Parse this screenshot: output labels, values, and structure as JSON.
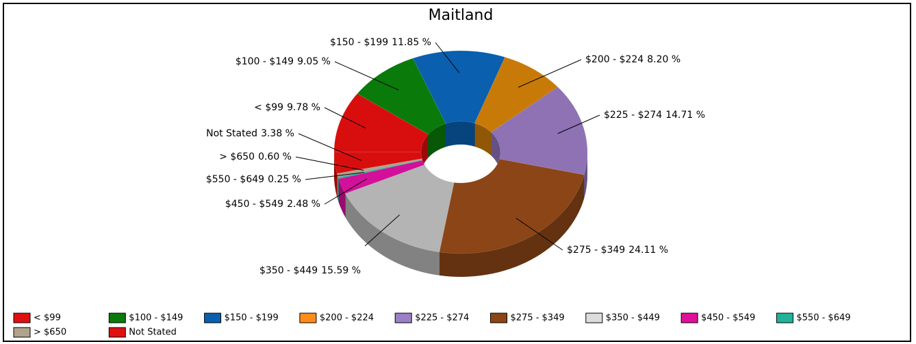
{
  "chart_data": {
    "type": "donut",
    "title": "Maitland",
    "categories": [
      "< $99",
      "$100 - $149",
      "$150 - $199",
      "$200 - $224",
      "$225 - $274",
      "$275 - $349",
      "$350 - $449",
      "$450 - $549",
      "$550 - $649",
      "> $650",
      "Not Stated"
    ],
    "values": [
      9.78,
      9.05,
      11.85,
      8.2,
      14.71,
      24.11,
      15.59,
      2.48,
      0.25,
      0.6,
      3.38
    ],
    "value_labels": [
      "9.78 %",
      "9.05 %",
      "11.85 %",
      "8.20 %",
      "14.71 %",
      "24.11 %",
      "15.59 %",
      "2.48 %",
      "0.25 %",
      "0.60 %",
      "3.38 %"
    ],
    "colors": [
      "#d80e0e",
      "#0a7a0a",
      "#0a5fae",
      "#c87a08",
      "#8e72b4",
      "#8b4516",
      "#b4b4b4",
      "#d2109a",
      "#1fb39c",
      "#b0a28c",
      "#d80e0e"
    ],
    "legend_colors": [
      "#e01010",
      "#0a7a0a",
      "#0a5fae",
      "#ff8c1a",
      "#9a80c8",
      "#8b4516",
      "#dcdcdc",
      "#e0109a",
      "#1fb39c",
      "#b0a28c",
      "#e01010"
    ],
    "legend": "bottom"
  }
}
